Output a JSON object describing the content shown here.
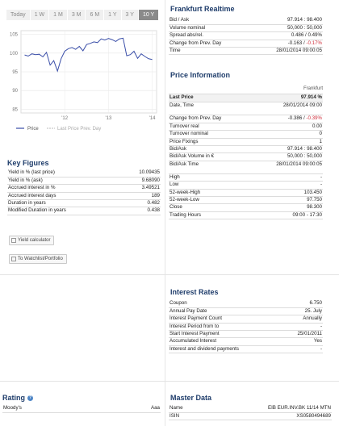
{
  "tabs": [
    "Today",
    "1 W",
    "1 M",
    "3 M",
    "6 M",
    "1 Y",
    "3 Y",
    "10 Y"
  ],
  "active_tab": "10 Y",
  "chart_data": {
    "type": "line",
    "x_tick_labels": [
      "'12",
      "'13",
      "'14"
    ],
    "y_ticks": [
      85,
      90,
      95,
      100,
      105
    ],
    "ylim": [
      84,
      106
    ],
    "series": [
      {
        "name": "Price",
        "color": "#3a4ea8",
        "x": [
          "2011-02",
          "2011-03",
          "2011-04",
          "2011-05",
          "2011-06",
          "2011-07",
          "2011-08",
          "2011-09",
          "2011-10",
          "2011-11",
          "2011-12",
          "2012-01",
          "2012-02",
          "2012-03",
          "2012-04",
          "2012-05",
          "2012-06",
          "2012-07",
          "2012-08",
          "2012-09",
          "2012-10",
          "2012-11",
          "2012-12",
          "2013-01",
          "2013-02",
          "2013-03",
          "2013-04",
          "2013-05",
          "2013-06",
          "2013-07",
          "2013-08",
          "2013-09",
          "2013-10",
          "2013-11",
          "2013-12",
          "2014-01"
        ],
        "values": [
          99.5,
          99.2,
          99.8,
          99.6,
          99.7,
          99.0,
          100.2,
          96.8,
          98.0,
          95.2,
          98.5,
          100.5,
          101.2,
          101.5,
          101.0,
          101.8,
          100.6,
          102.3,
          102.6,
          103.0,
          102.8,
          103.8,
          103.5,
          103.9,
          103.6,
          103.1,
          103.8,
          104.0,
          99.3,
          99.6,
          100.5,
          98.6,
          99.8,
          99.1,
          98.5,
          98.3
        ]
      }
    ],
    "legend": [
      "Price",
      "Last Price Prev. Day"
    ],
    "legend_position": "bottom-left"
  },
  "key_figures": {
    "title": "Key Figures",
    "rows": [
      {
        "label": "Yield in % (last price)",
        "value": "10.09435"
      },
      {
        "label": "Yield in % (ask)",
        "value": "9.68090"
      },
      {
        "label": "Accrued interest in %",
        "value": "3.49521"
      },
      {
        "label": "Accrued interest days",
        "value": "189"
      },
      {
        "label": "Duration in years",
        "value": "0.482"
      },
      {
        "label": "Modified Duration in years",
        "value": "0.438"
      }
    ],
    "yield_calc_label": "Yield calculator",
    "watchlist_label": "To Watchlist/Portfolio"
  },
  "frankfurt": {
    "title": "Frankfurt Realtime",
    "rows": [
      {
        "label": "Bid / Ask",
        "value": "97.914 : 98.400",
        "neg": false
      },
      {
        "label": "Volume nominal",
        "value": "50,000 : 50,000",
        "neg": false
      },
      {
        "label": "Spread abs/rel.",
        "value": "0.486 / 0.49%",
        "neg": false
      },
      {
        "label": "Change from Prev. Day",
        "value": "-0.163 / ",
        "neg_part": "-0.17%"
      },
      {
        "label": "Time",
        "value": "28/01/2014 09:00:05",
        "neg": false
      }
    ]
  },
  "price_info": {
    "title": "Price Information",
    "exchange": "Frankfurt",
    "last_price_label": "Last Price",
    "last_price_value": "97.914 %",
    "rows": [
      {
        "label": "Date, Time",
        "value": "28/01/2014 09:00",
        "tall": true
      },
      {
        "label": "Change from Prev. Day",
        "value": "-0.386 / ",
        "neg_part": "-0.39%"
      },
      {
        "label": "Turnover real",
        "value": "0.00"
      },
      {
        "label": "Turnover nominal",
        "value": "0"
      },
      {
        "label": "Price Fixings",
        "value": "1"
      },
      {
        "label": "Bid/Ask",
        "value": "97.914 : 98.400"
      },
      {
        "label": "Bid/Ask Volume in €",
        "value": "50,000 : 50,000"
      },
      {
        "label": "Bid/Ask Time",
        "value": "28/01/2014 09:00:05",
        "tall": true
      },
      {
        "label": "High",
        "value": "-"
      },
      {
        "label": "Low",
        "value": "-"
      },
      {
        "label": "52-week-High",
        "value": "103.450"
      },
      {
        "label": "52-week-Low",
        "value": "97.750"
      },
      {
        "label": "Close",
        "value": "98.300"
      },
      {
        "label": "Trading Hours",
        "value": "09:00 - 17:30"
      }
    ]
  },
  "interest": {
    "title": "Interest Rates",
    "rows": [
      {
        "label": "Coupon",
        "value": "6.750"
      },
      {
        "label": "Annual Pay Date",
        "value": "25. July"
      },
      {
        "label": "Interest Payment Count",
        "value": "Annually"
      },
      {
        "label": "Interest Period from to",
        "value": "-"
      },
      {
        "label": "Start Interest Payment",
        "value": "25/01/2011"
      },
      {
        "label": "Accumulated Interest",
        "value": "Yes"
      },
      {
        "label": "Interest and dividend payments",
        "value": "-"
      }
    ]
  },
  "rating": {
    "title": "Rating",
    "help": "?",
    "rows": [
      {
        "label": "Moody's",
        "value": "Aaa"
      }
    ]
  },
  "master": {
    "title": "Master Data",
    "rows": [
      {
        "label": "Name",
        "value": "EIB EUR.INV.BK 11/14 MTN"
      },
      {
        "label": "ISIN",
        "value": "XS0580494689"
      }
    ]
  }
}
